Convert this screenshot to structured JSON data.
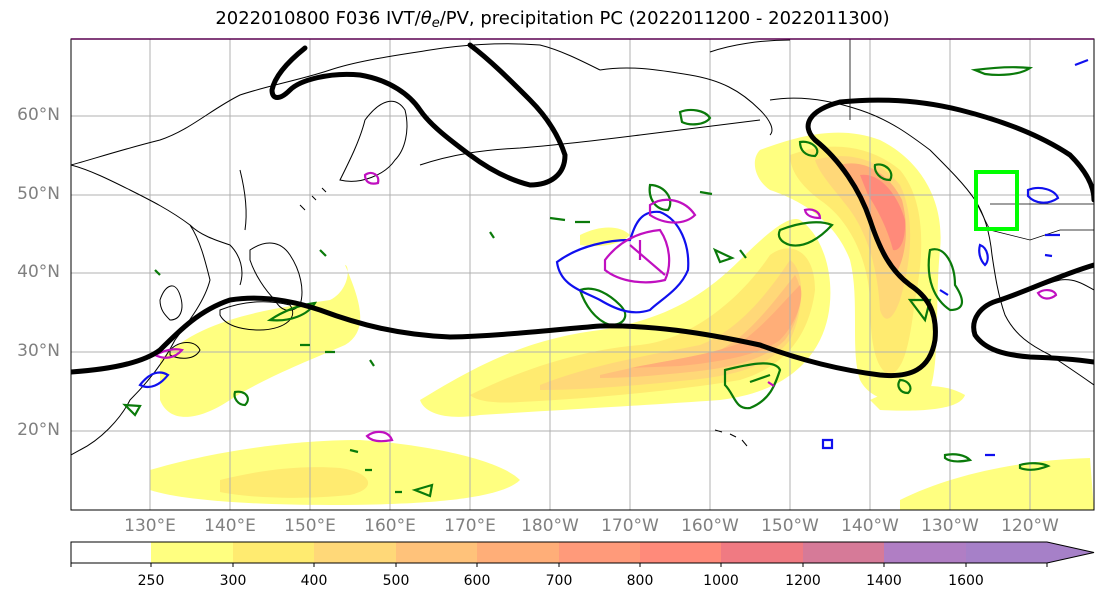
{
  "title": {
    "prefix": "2022010800 F036 IVT/",
    "theta": "θ",
    "sub": "e",
    "suffix": "/PV, precipitation PC (2022011200 - 2022011300)"
  },
  "map": {
    "region": "North Pacific",
    "lat_ticks": [
      "60°N",
      "50°N",
      "40°N",
      "30°N",
      "20°N"
    ],
    "lon_ticks": [
      "130°E",
      "140°E",
      "150°E",
      "160°E",
      "170°E",
      "180°W",
      "170°W",
      "160°W",
      "150°W",
      "140°W",
      "130°W",
      "120°W"
    ],
    "colors": {
      "coast": "#000000",
      "grid": "#b0b0b0",
      "pv_contour": "#000000",
      "theta_green": "#0a7a0a",
      "theta_blue": "#1010ee",
      "theta_magenta": "#c010c0",
      "highlight_box": "#00ff00"
    }
  },
  "colorbar": {
    "levels": [
      "250",
      "300",
      "400",
      "500",
      "600",
      "700",
      "800",
      "1000",
      "1200",
      "1400",
      "1600"
    ],
    "colors": [
      "#ffffff",
      "#ffff80",
      "#ffeb70",
      "#ffd878",
      "#ffc27a",
      "#ffae78",
      "#ff9a7a",
      "#ff8a7a",
      "#f07a82",
      "#d67a98",
      "#b07ec4"
    ]
  }
}
